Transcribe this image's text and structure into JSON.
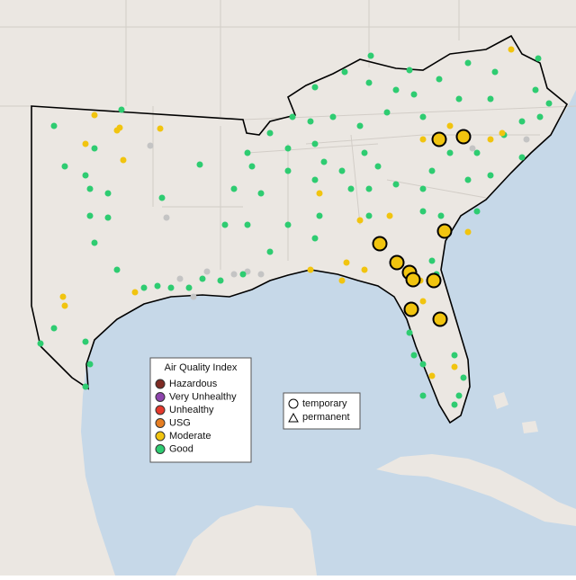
{
  "legend": {
    "title": "Air Quality Index",
    "items": [
      {
        "label": "Hazardous",
        "color": "#7e2b24"
      },
      {
        "label": "Very Unhealthy",
        "color": "#8e44ad"
      },
      {
        "label": "Unhealthy",
        "color": "#e5392c"
      },
      {
        "label": "USG",
        "color": "#e67e22"
      },
      {
        "label": "Moderate",
        "color": "#f1c40f"
      },
      {
        "label": "Good",
        "color": "#2ecc71"
      }
    ]
  },
  "shape_legend": {
    "items": [
      "temporary",
      "permanent"
    ]
  }
}
